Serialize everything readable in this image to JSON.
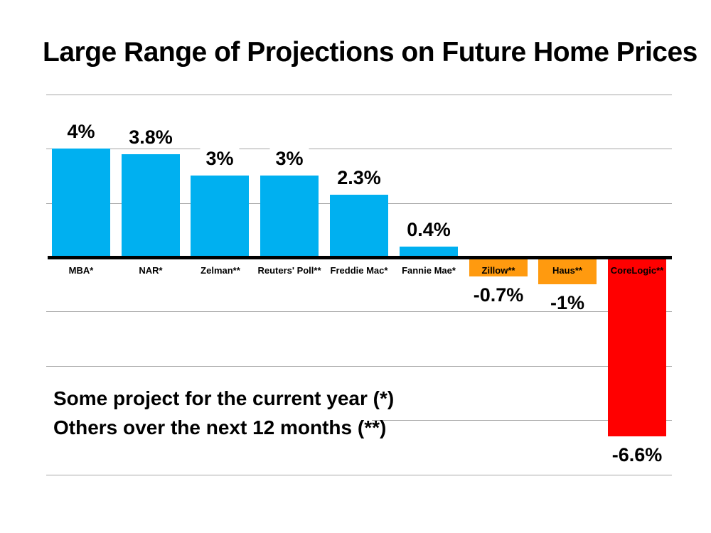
{
  "title": "Large Range of Projections on Future Home Prices",
  "annotation": {
    "line1": "Some project for the current year (*)",
    "line2": "Others over the next 12 months (**)"
  },
  "chart_data": {
    "type": "bar",
    "title": "Large Range of Projections on Future Home Prices",
    "categories": [
      "MBA*",
      "NAR*",
      "Zelman**",
      "Reuters' Poll**",
      "Freddie Mac*",
      "Fannie Mae*",
      "Zillow**",
      "Haus**",
      "CoreLogic**"
    ],
    "values": [
      4,
      3.8,
      3,
      3,
      2.3,
      0.4,
      -0.7,
      -1,
      -6.6
    ],
    "value_labels": [
      "4%",
      "3.8%",
      "3%",
      "3%",
      "2.3%",
      "0.4%",
      "-0.7%",
      "-1%",
      "-6.6%"
    ],
    "bar_colors": [
      "#00b0f0",
      "#00b0f0",
      "#00b0f0",
      "#00b0f0",
      "#00b0f0",
      "#00b0f0",
      "#ff9a0f",
      "#ff9a0f",
      "#ff0000"
    ],
    "xlabel": "",
    "ylabel": "",
    "ylim": [
      -8,
      6
    ],
    "gridline_step": 2,
    "grid": true,
    "legend": false,
    "annotations": [
      "Some project for the current year (*)",
      "Others over the next 12 months (**)"
    ],
    "colors": {
      "positive_bar": "#00b0f0",
      "small_negative_bar": "#ff9a0f",
      "large_negative_bar": "#ff0000",
      "gridline": "#a6a6a6",
      "axis": "#000000",
      "text": "#000000",
      "background": "#ffffff"
    }
  }
}
